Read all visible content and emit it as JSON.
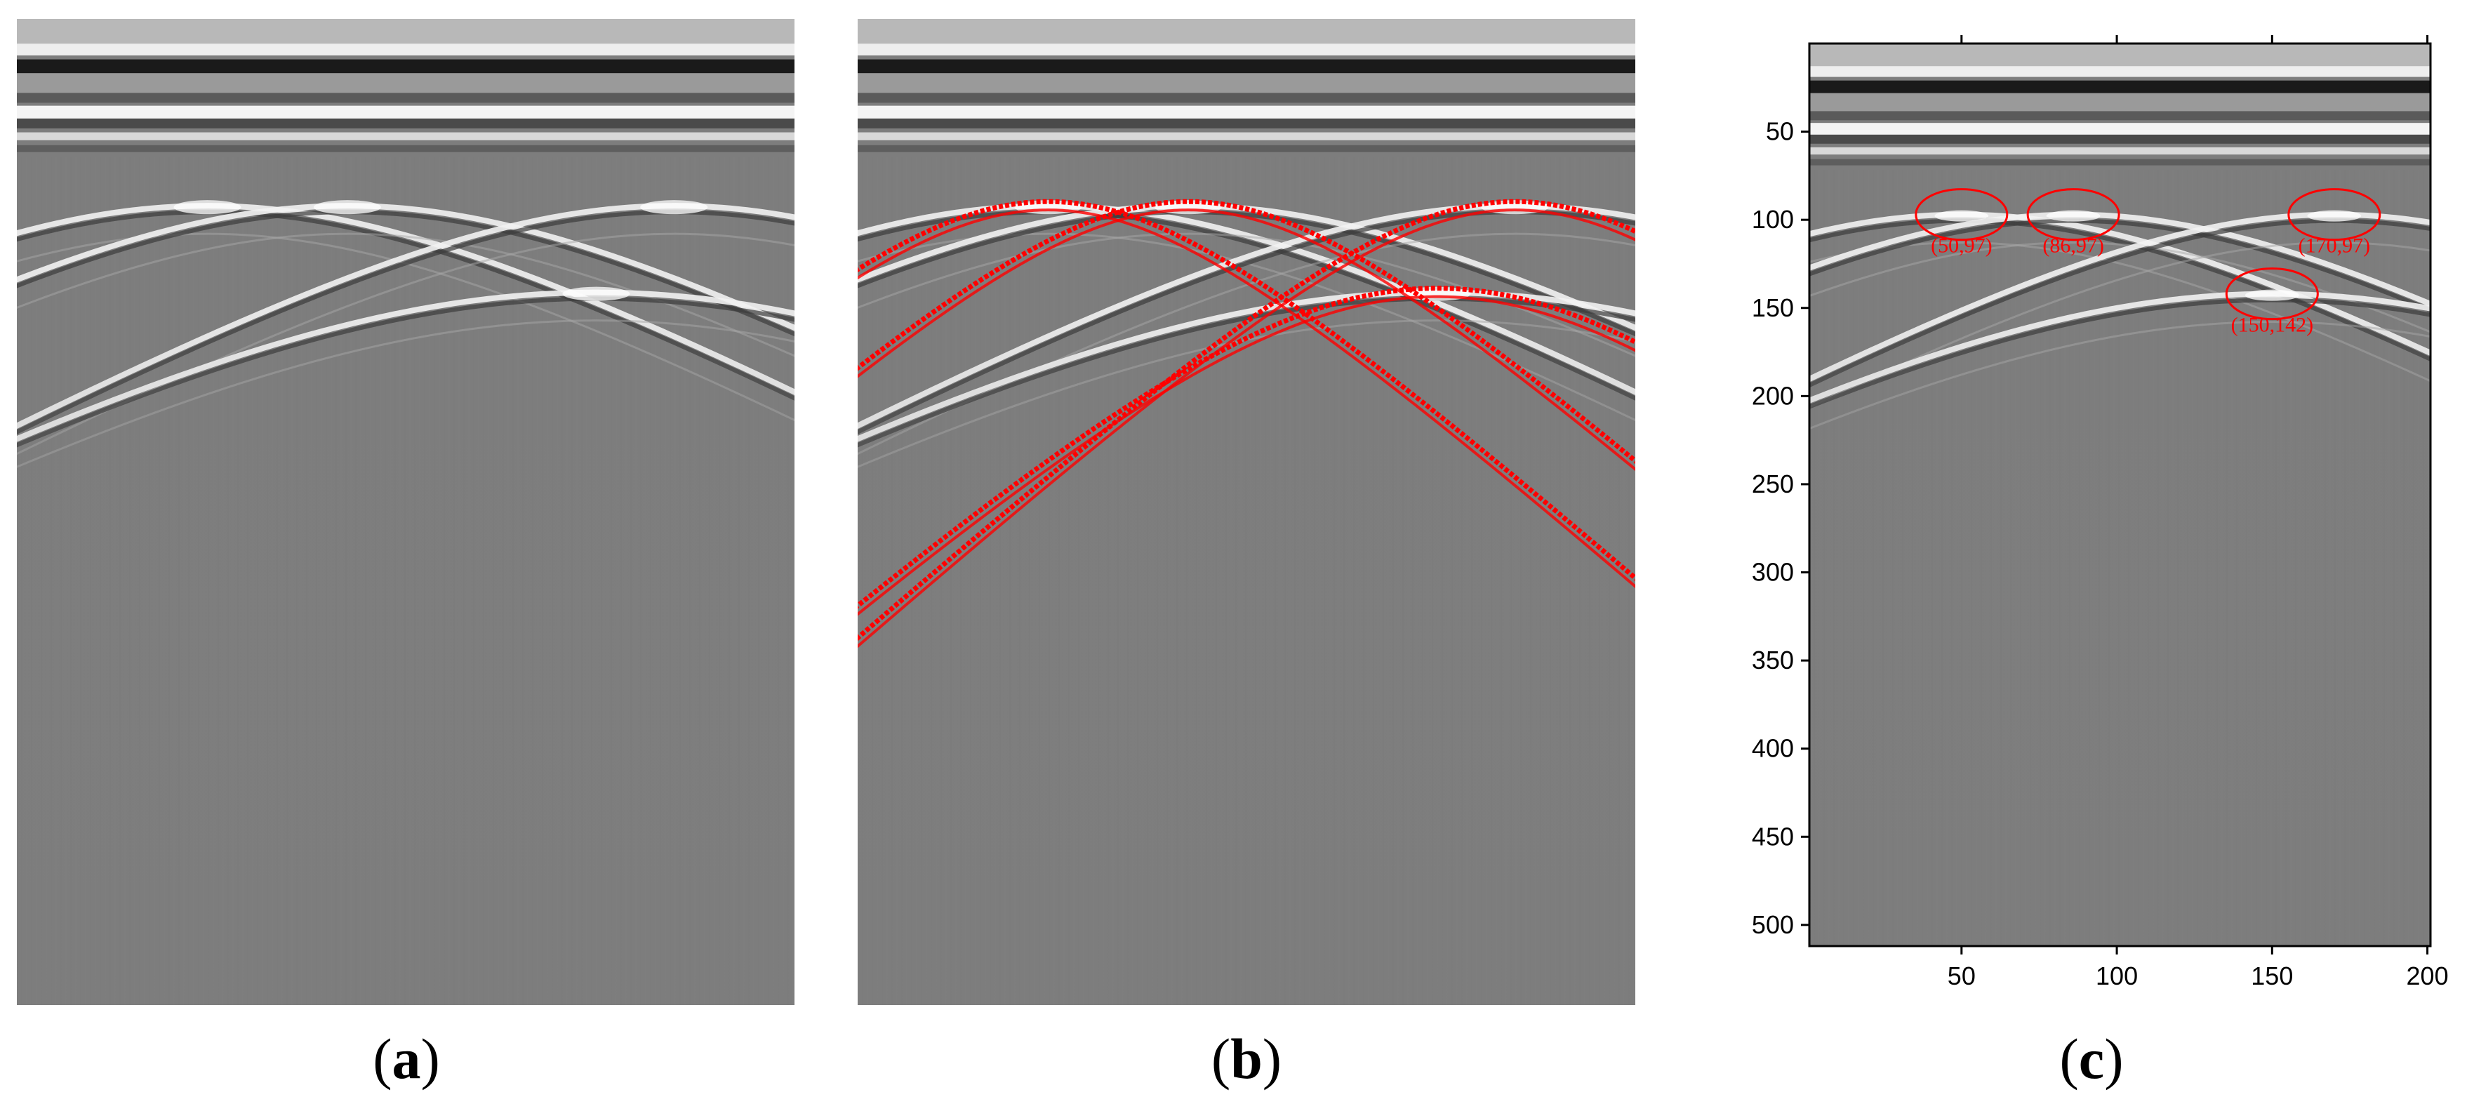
{
  "panels": [
    {
      "id": "a",
      "label": "a"
    },
    {
      "id": "b",
      "label": "b"
    },
    {
      "id": "c",
      "label": "c"
    }
  ],
  "panel_c_axes": {
    "y_ticks": [
      50,
      100,
      150,
      200,
      250,
      300,
      350,
      400,
      450,
      500
    ],
    "x_ticks": [
      50,
      100,
      150,
      200
    ],
    "x_range": [
      1,
      201
    ],
    "y_range": [
      0,
      512
    ]
  },
  "hyperbola_apexes": [
    {
      "x": 50,
      "y": 97,
      "label": "(50,97)"
    },
    {
      "x": 86,
      "y": 97,
      "label": "(86,97)"
    },
    {
      "x": 170,
      "y": 97,
      "label": "(170,97)"
    },
    {
      "x": 150,
      "y": 142,
      "label": "(150,142)"
    }
  ],
  "colors": {
    "background_gray": "#7d7d7d",
    "fit_curve": "#ff0000",
    "text": "#000000"
  }
}
